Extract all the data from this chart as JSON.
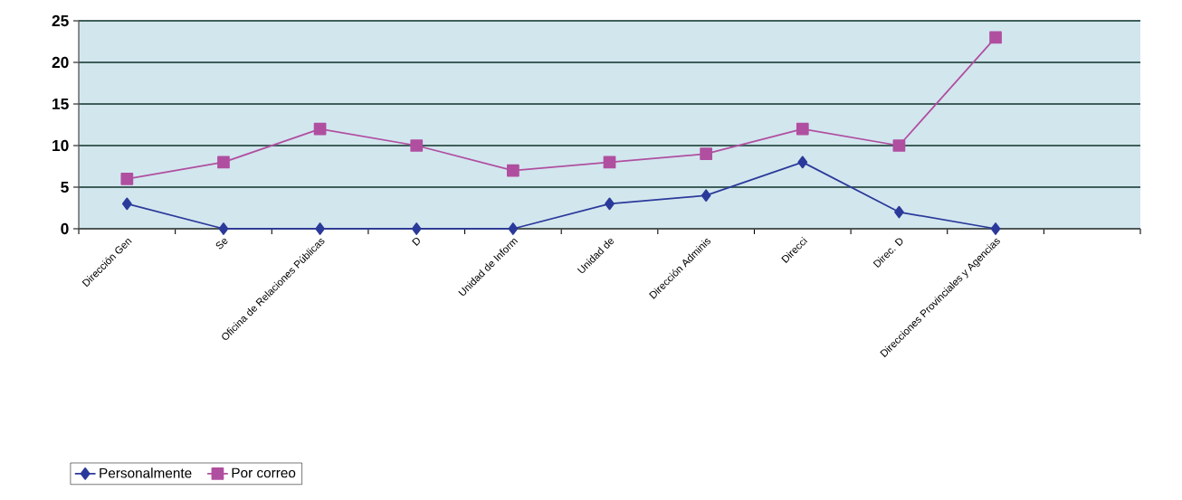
{
  "chart_data": {
    "type": "line",
    "categories": [
      "Dirección Gen",
      "Se",
      "Oficina de Relaciones Públicas",
      "D",
      "Unidad de Inform",
      "Unidad de",
      "Dirección Adminis",
      "Direcci",
      "Direc. D",
      "Direcciones Provinciales y Agencias",
      null
    ],
    "series": [
      {
        "name": "Personalmente",
        "color": "#2b3a9a",
        "marker": "diamond",
        "values": [
          3,
          0,
          0,
          0,
          0,
          3,
          4,
          8,
          2,
          0,
          null
        ]
      },
      {
        "name": "Por correo",
        "color": "#b04fa0",
        "marker": "square",
        "values": [
          6,
          8,
          12,
          10,
          7,
          8,
          9,
          12,
          10,
          23,
          null
        ]
      }
    ],
    "ylim": [
      0,
      25
    ],
    "yticks": [
      0,
      5,
      10,
      15,
      20,
      25
    ],
    "grid": "y",
    "legend": "bottom left",
    "line_style": "solid"
  }
}
